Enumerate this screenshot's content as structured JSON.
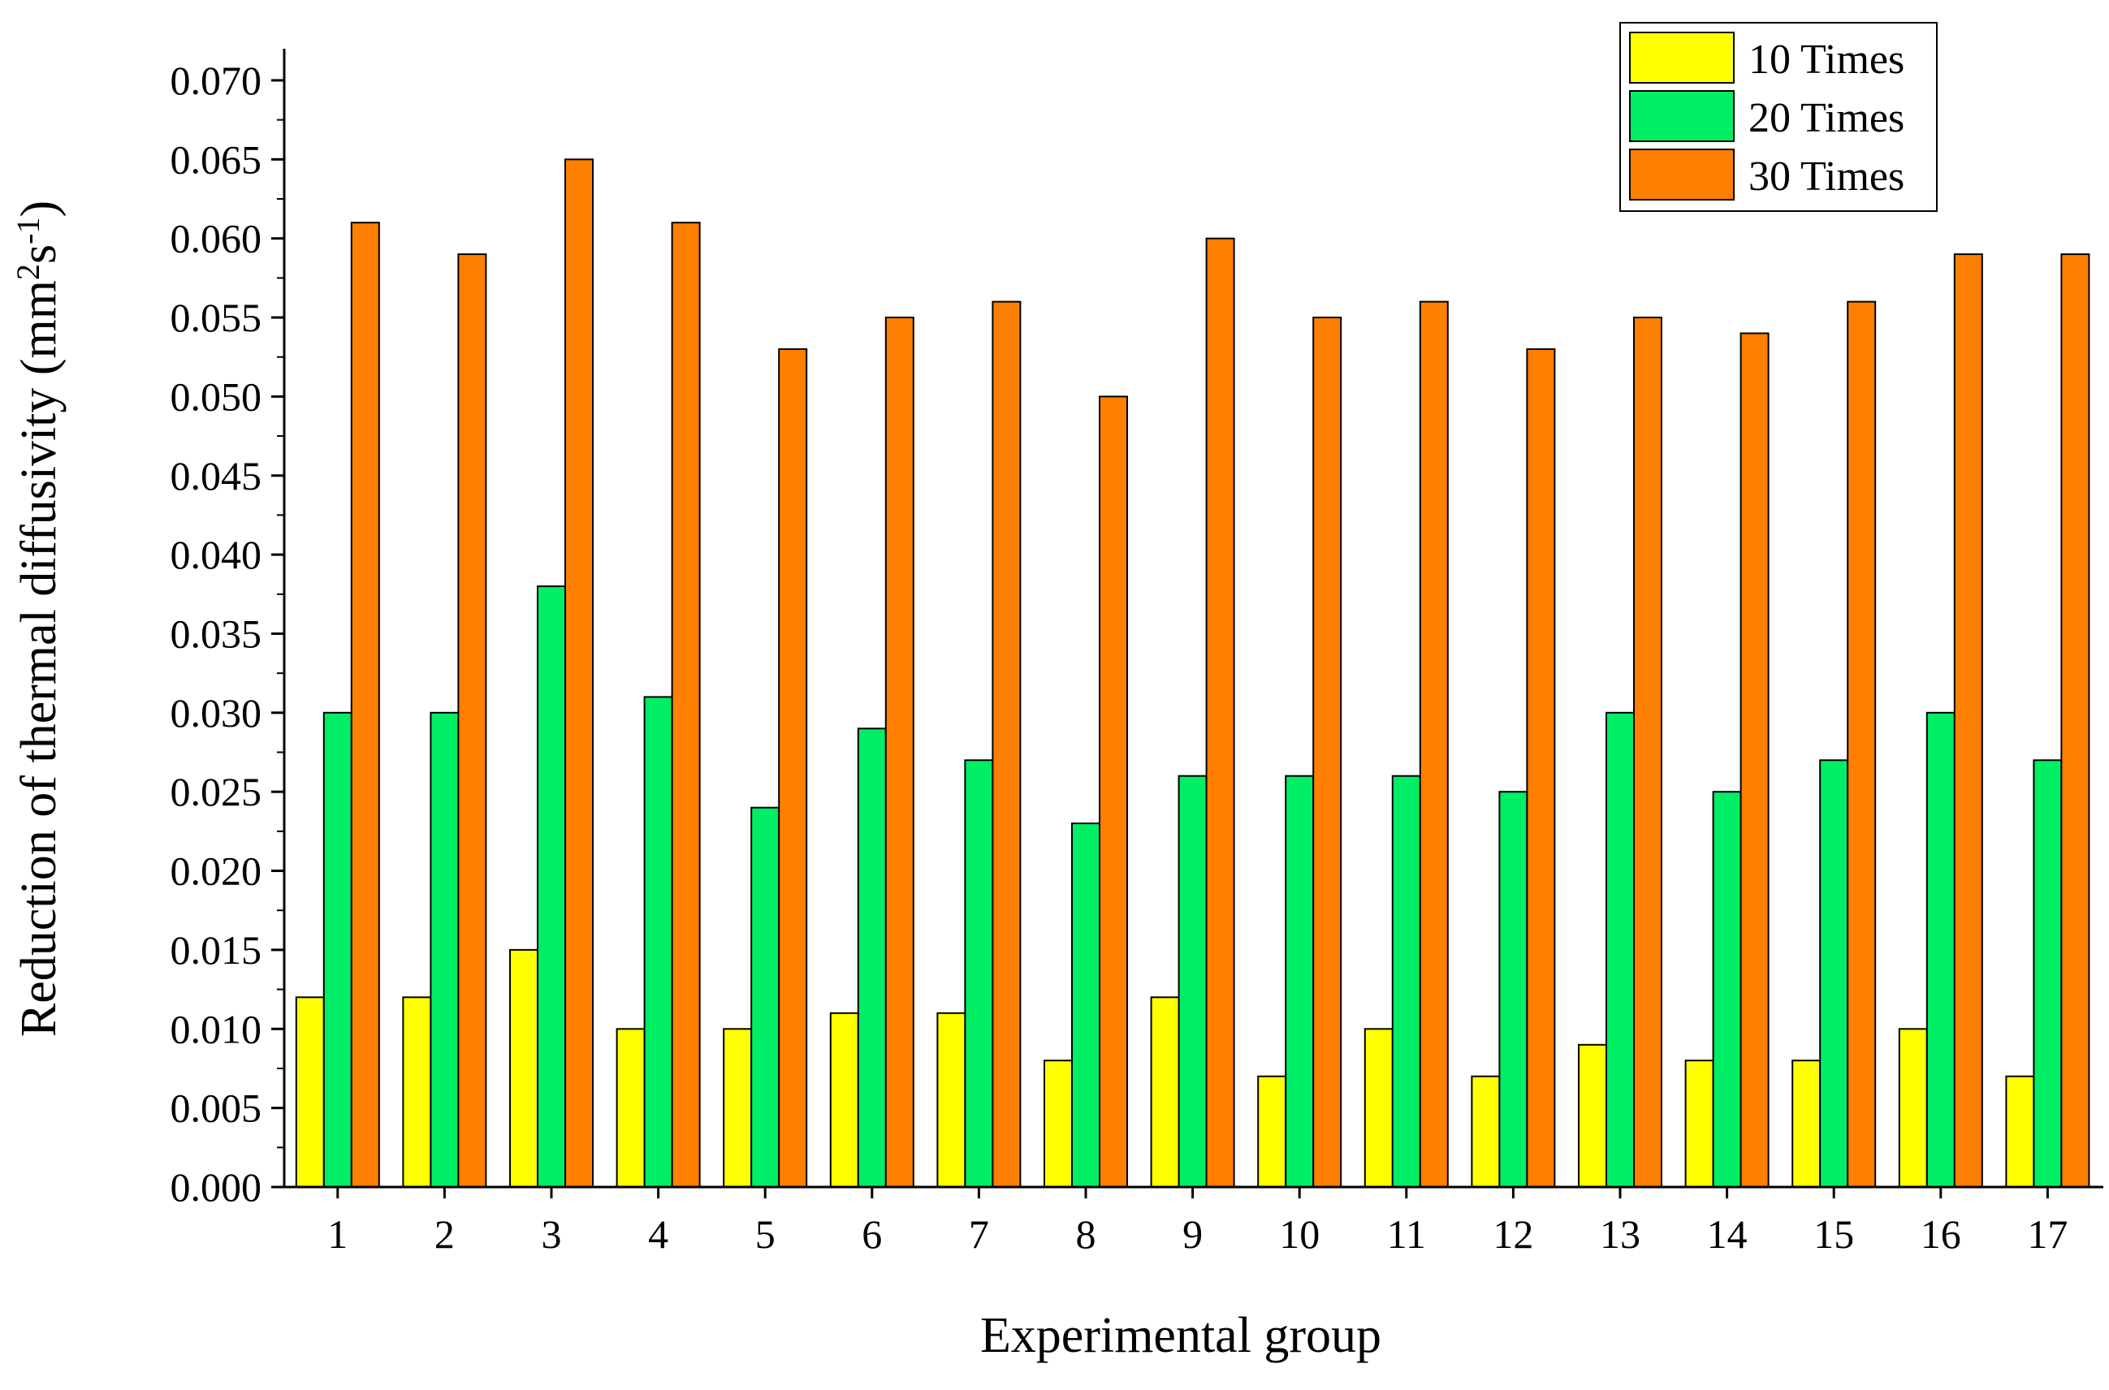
{
  "chart_data": {
    "type": "bar",
    "title": "",
    "xlabel": "Experimental group",
    "ylabel": {
      "main": "Reduction of thermal diffusivity (mm",
      "sup1": "2",
      "mid": "s",
      "sup2": "-1",
      "end": ")"
    },
    "categories": [
      "1",
      "2",
      "3",
      "4",
      "5",
      "6",
      "7",
      "8",
      "9",
      "10",
      "11",
      "12",
      "13",
      "14",
      "15",
      "16",
      "17"
    ],
    "series": [
      {
        "name": "10 Times",
        "color": "#ffff00",
        "values": [
          0.012,
          0.012,
          0.015,
          0.01,
          0.01,
          0.011,
          0.011,
          0.008,
          0.012,
          0.007,
          0.01,
          0.007,
          0.009,
          0.008,
          0.008,
          0.01,
          0.007
        ]
      },
      {
        "name": "20 Times",
        "color": "#00ee66",
        "values": [
          0.03,
          0.03,
          0.038,
          0.031,
          0.024,
          0.029,
          0.027,
          0.023,
          0.026,
          0.026,
          0.026,
          0.025,
          0.03,
          0.025,
          0.027,
          0.03,
          0.027
        ]
      },
      {
        "name": "30 Times",
        "color": "#ff7f00",
        "values": [
          0.061,
          0.059,
          0.065,
          0.061,
          0.053,
          0.055,
          0.056,
          0.05,
          0.06,
          0.055,
          0.056,
          0.053,
          0.055,
          0.054,
          0.056,
          0.059,
          0.059
        ]
      }
    ],
    "yticks": [
      "0.000",
      "0.005",
      "0.010",
      "0.015",
      "0.020",
      "0.025",
      "0.030",
      "0.035",
      "0.040",
      "0.045",
      "0.050",
      "0.055",
      "0.060",
      "0.065",
      "0.070"
    ],
    "ylim": [
      0,
      0.072
    ],
    "grid": false,
    "legend_position": "top-right"
  }
}
